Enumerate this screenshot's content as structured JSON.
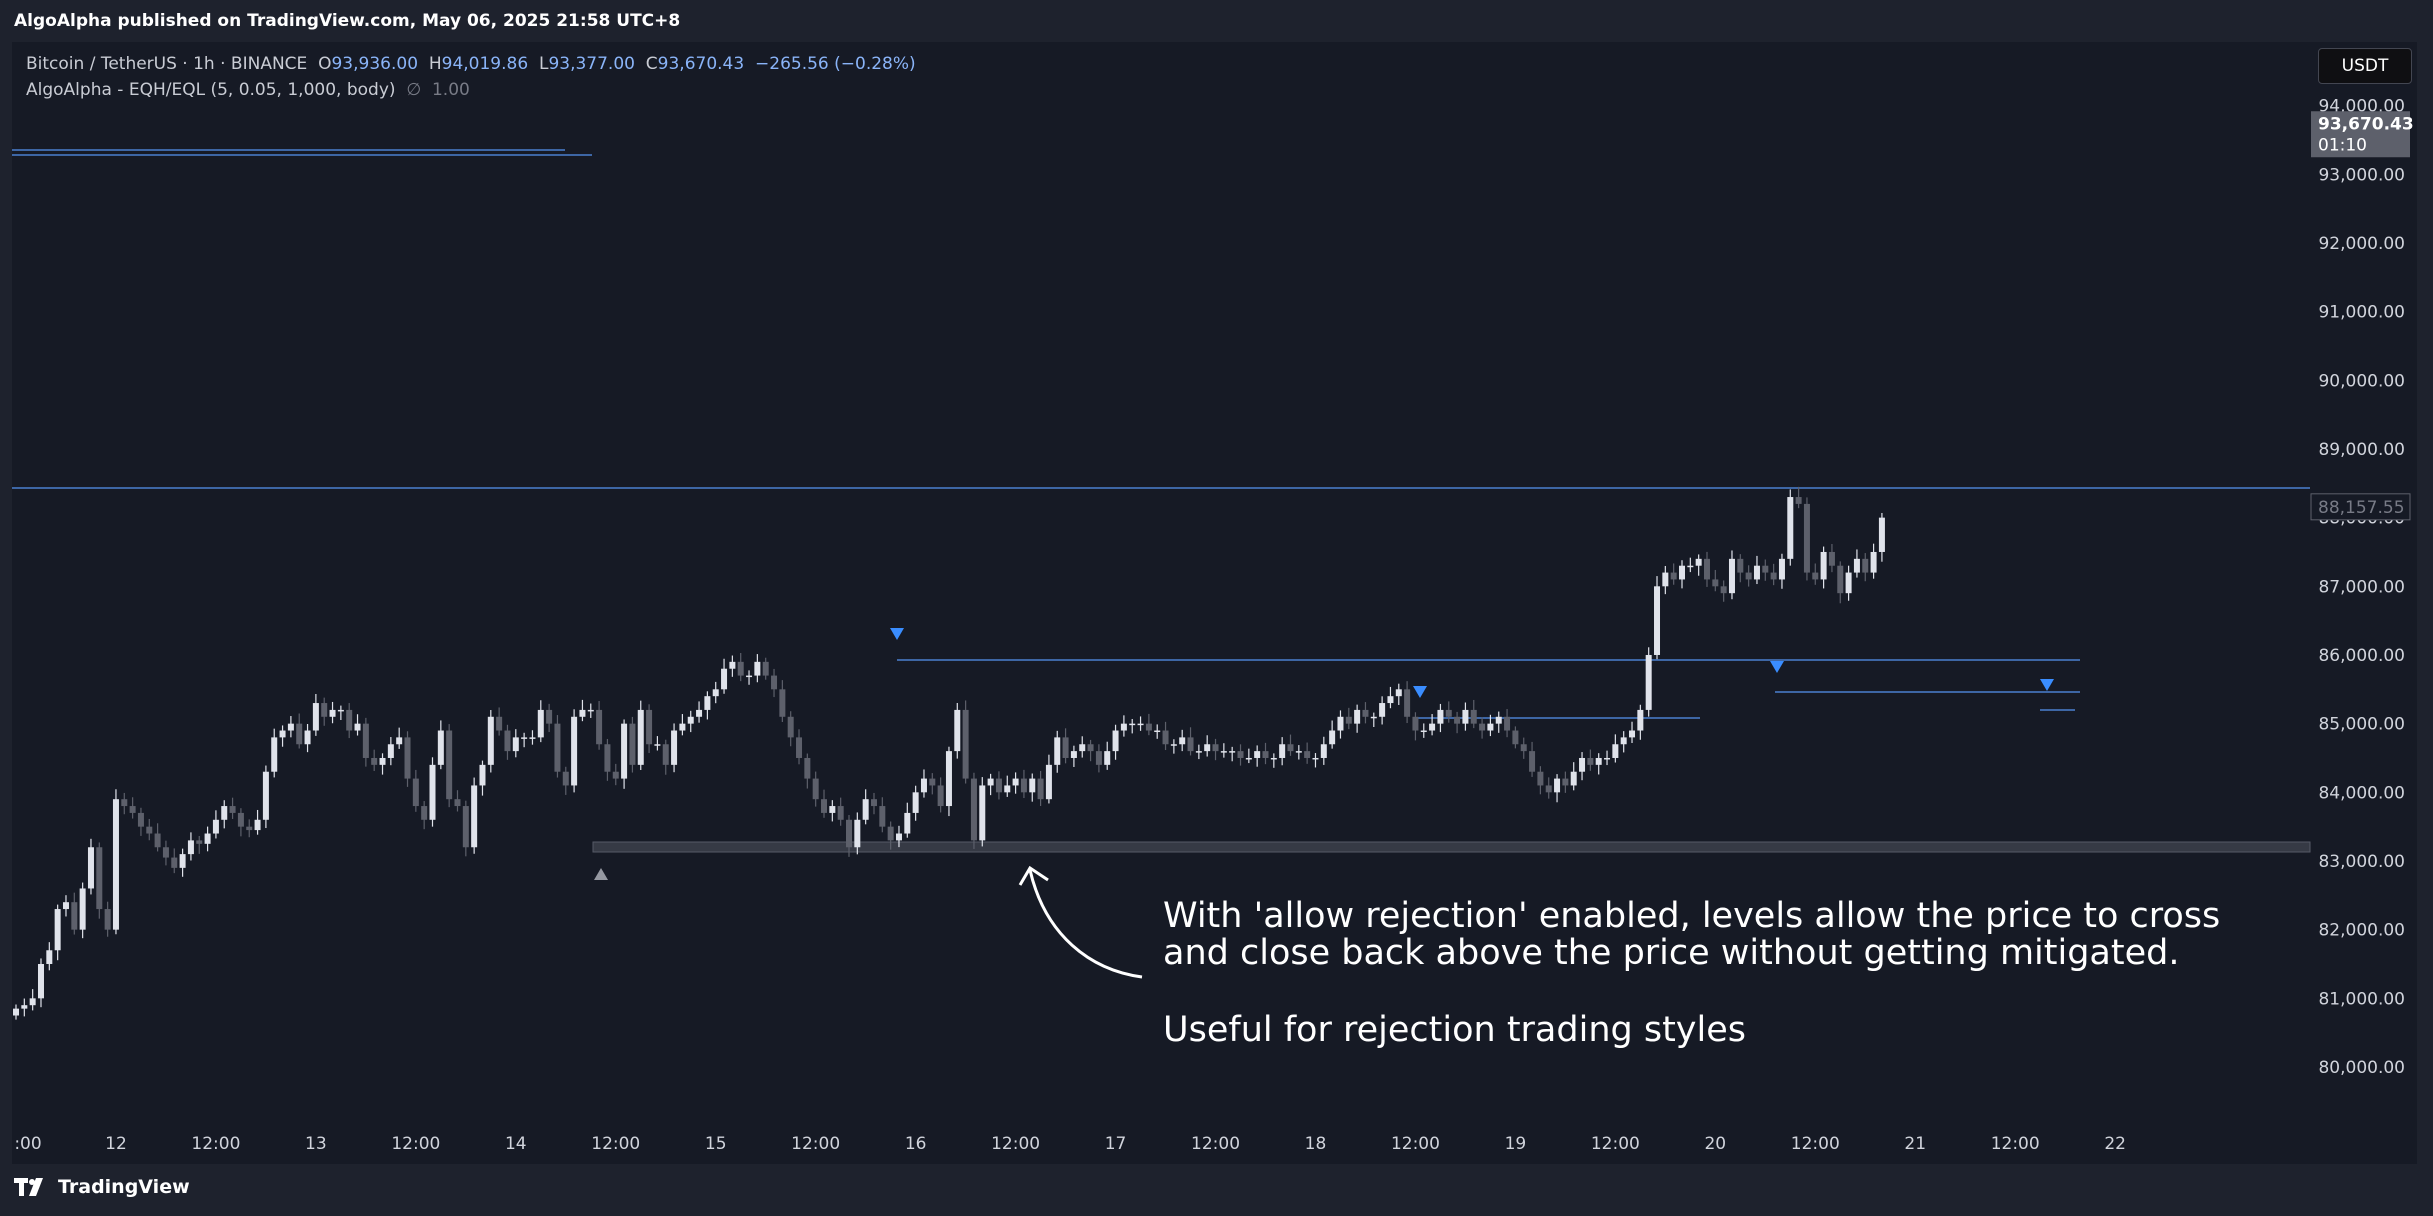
{
  "header": {
    "publisher": "AlgoAlpha published on TradingView.com, May 06, 2025 21:58 UTC+8"
  },
  "legend": {
    "symbol": "Bitcoin / TetherUS · 1h · BINANCE",
    "o_label": "O",
    "open": "93,936.00",
    "h_label": "H",
    "high": "94,019.86",
    "l_label": "L",
    "low": "93,377.00",
    "c_label": "C",
    "close": "93,670.43",
    "change": "−265.56 (−0.28%)",
    "indicator": "AlgoAlpha - EQH/EQL (5, 0.05, 1,000, body)",
    "indicator_symbol": "∅",
    "indicator_value": "1.00"
  },
  "currency_button": "USDT",
  "annotation": {
    "line1": "With 'allow rejection' enabled, levels allow the price to cross",
    "line2": "and close back above the price without getting mitigated.",
    "line3": "Useful for rejection trading styles"
  },
  "footer": {
    "brand": "TradingView"
  },
  "colors": {
    "background": "#161a25",
    "up": "#e0e3eb",
    "down": "#5d606b",
    "level": "#4a7fd0",
    "marker": "#3a8dff"
  },
  "chart_data": {
    "type": "candlestick",
    "y_axis": {
      "ticks": [
        80000,
        81000,
        82000,
        83000,
        84000,
        85000,
        86000,
        87000,
        88000,
        89000,
        90000,
        91000,
        92000,
        93000,
        94000
      ],
      "tick_labels": [
        "80,000.00",
        "81,000.00",
        "82,000.00",
        "83,000.00",
        "84,000.00",
        "85,000.00",
        "86,000.00",
        "87,000.00",
        "88,000.00",
        "89,000.00",
        "90,000.00",
        "91,000.00",
        "92,000.00",
        "93,000.00",
        "94,000.00"
      ],
      "range": [
        79000,
        95000
      ]
    },
    "x_axis": {
      "tick_labels": [
        ":00",
        "12",
        "12:00",
        "13",
        "12:00",
        "14",
        "12:00",
        "15",
        "12:00",
        "16",
        "12:00",
        "17",
        "12:00",
        "18",
        "12:00",
        "19",
        "12:00",
        "20",
        "12:00",
        "21",
        "12:00",
        "22"
      ],
      "tick_index": [
        0,
        12,
        24,
        36,
        48,
        60,
        72,
        84,
        96,
        108,
        120,
        132,
        144,
        156,
        168,
        180,
        192,
        204,
        216,
        228,
        240,
        252
      ]
    },
    "price_labels": [
      {
        "value": 93670.43,
        "text": "93,670.43",
        "countdown": "01:10"
      },
      {
        "value": 88157.55,
        "text": "88,157.55"
      }
    ],
    "closes": [
      80850,
      80900,
      81000,
      81500,
      81700,
      82300,
      82400,
      82000,
      82600,
      83200,
      82300,
      82000,
      83900,
      83800,
      83700,
      83500,
      83400,
      83200,
      83050,
      82900,
      83100,
      83300,
      83250,
      83400,
      83600,
      83800,
      83700,
      83500,
      83450,
      83600,
      84300,
      84800,
      84900,
      85000,
      84700,
      84900,
      85300,
      85100,
      85200,
      85200,
      84900,
      85000,
      84500,
      84400,
      84500,
      84700,
      84800,
      84200,
      83800,
      83600,
      84400,
      84900,
      83900,
      83800,
      83200,
      84100,
      84400,
      85100,
      84900,
      84600,
      84800,
      84800,
      84800,
      85200,
      85000,
      84300,
      84100,
      85100,
      85200,
      85200,
      84700,
      84300,
      84200,
      85000,
      84400,
      85200,
      84700,
      84700,
      84400,
      84900,
      85000,
      85100,
      85200,
      85400,
      85500,
      85800,
      85900,
      85700,
      85700,
      85900,
      85700,
      85500,
      85100,
      84800,
      84500,
      84200,
      83900,
      83700,
      83800,
      83600,
      83200,
      83600,
      83900,
      83800,
      83500,
      83300,
      83400,
      83700,
      84000,
      84200,
      84100,
      83800,
      84600,
      85200,
      84200,
      83300,
      84100,
      84200,
      84000,
      84100,
      84200,
      84000,
      84200,
      83900,
      84400,
      84800,
      84500,
      84600,
      84700,
      84600,
      84400,
      84600,
      84900,
      85000,
      85000,
      85000,
      84900,
      84900,
      84700,
      84700,
      84800,
      84600,
      84600,
      84700,
      84600,
      84600,
      84600,
      84500,
      84500,
      84600,
      84500,
      84500,
      84700,
      84600,
      84600,
      84500,
      84500,
      84700,
      84900,
      85100,
      85000,
      85200,
      85100,
      85100,
      85300,
      85400,
      85500,
      85100,
      84900,
      84900,
      85000,
      85200,
      85100,
      85000,
      85200,
      85000,
      84900,
      85000,
      85100,
      84900,
      84700,
      84600,
      84300,
      84100,
      84000,
      84200,
      84100,
      84300,
      84500,
      84400,
      84500,
      84500,
      84700,
      84800,
      84900,
      85200,
      86000,
      87000,
      87200,
      87100,
      87300,
      87300,
      87400,
      87100,
      87000,
      86900,
      87400,
      87200,
      87100,
      87300,
      87200,
      87100,
      87400,
      88300,
      88200,
      87200,
      87100,
      87500,
      87300,
      86900,
      87200,
      87400,
      87200,
      87500,
      88000
    ]
  }
}
